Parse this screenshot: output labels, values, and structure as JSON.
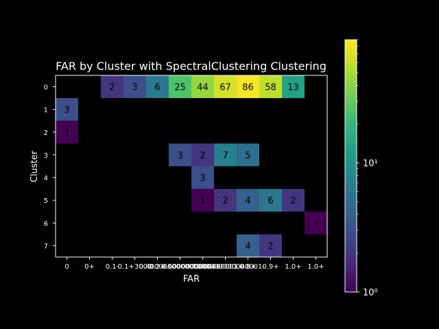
{
  "chart_data": {
    "type": "heatmap",
    "title": "FAR by Cluster with SpectralClustering Clustering",
    "xlabel": "FAR",
    "ylabel": "Cluster",
    "x_ticks": [
      "0",
      "0+",
      "0.1-",
      "0.1+3000",
      "0.2+",
      "0.4000000000000004+",
      "0.6000000000000001+",
      "0.7000000000000001-",
      "0.8+",
      "0.9+",
      "1.0+",
      "1.0+"
    ],
    "y_ticks": [
      "0",
      "1",
      "2",
      "3",
      "4",
      "5",
      "6",
      "7"
    ],
    "values": [
      [
        null,
        null,
        2,
        3,
        6,
        25,
        44,
        67,
        86,
        58,
        13,
        null
      ],
      [
        3,
        null,
        null,
        null,
        null,
        null,
        null,
        null,
        null,
        null,
        null,
        null
      ],
      [
        1,
        null,
        null,
        null,
        null,
        null,
        null,
        null,
        null,
        null,
        null,
        null
      ],
      [
        null,
        null,
        null,
        null,
        null,
        3,
        2,
        7,
        5,
        null,
        null,
        null
      ],
      [
        null,
        null,
        null,
        null,
        null,
        null,
        3,
        null,
        null,
        null,
        null,
        null
      ],
      [
        null,
        null,
        null,
        null,
        null,
        null,
        1,
        2,
        4,
        6,
        2,
        null
      ],
      [
        null,
        null,
        null,
        null,
        null,
        null,
        null,
        null,
        null,
        null,
        null,
        1
      ],
      [
        null,
        null,
        null,
        null,
        null,
        null,
        null,
        null,
        4,
        2,
        null,
        null
      ]
    ],
    "colorbar": {
      "scale": "log",
      "min": 1,
      "max": 90,
      "colormap": "viridis",
      "tick_labels": [
        "10⁰",
        "10¹"
      ],
      "tick_values": [
        1,
        10
      ]
    },
    "grid": false
  }
}
